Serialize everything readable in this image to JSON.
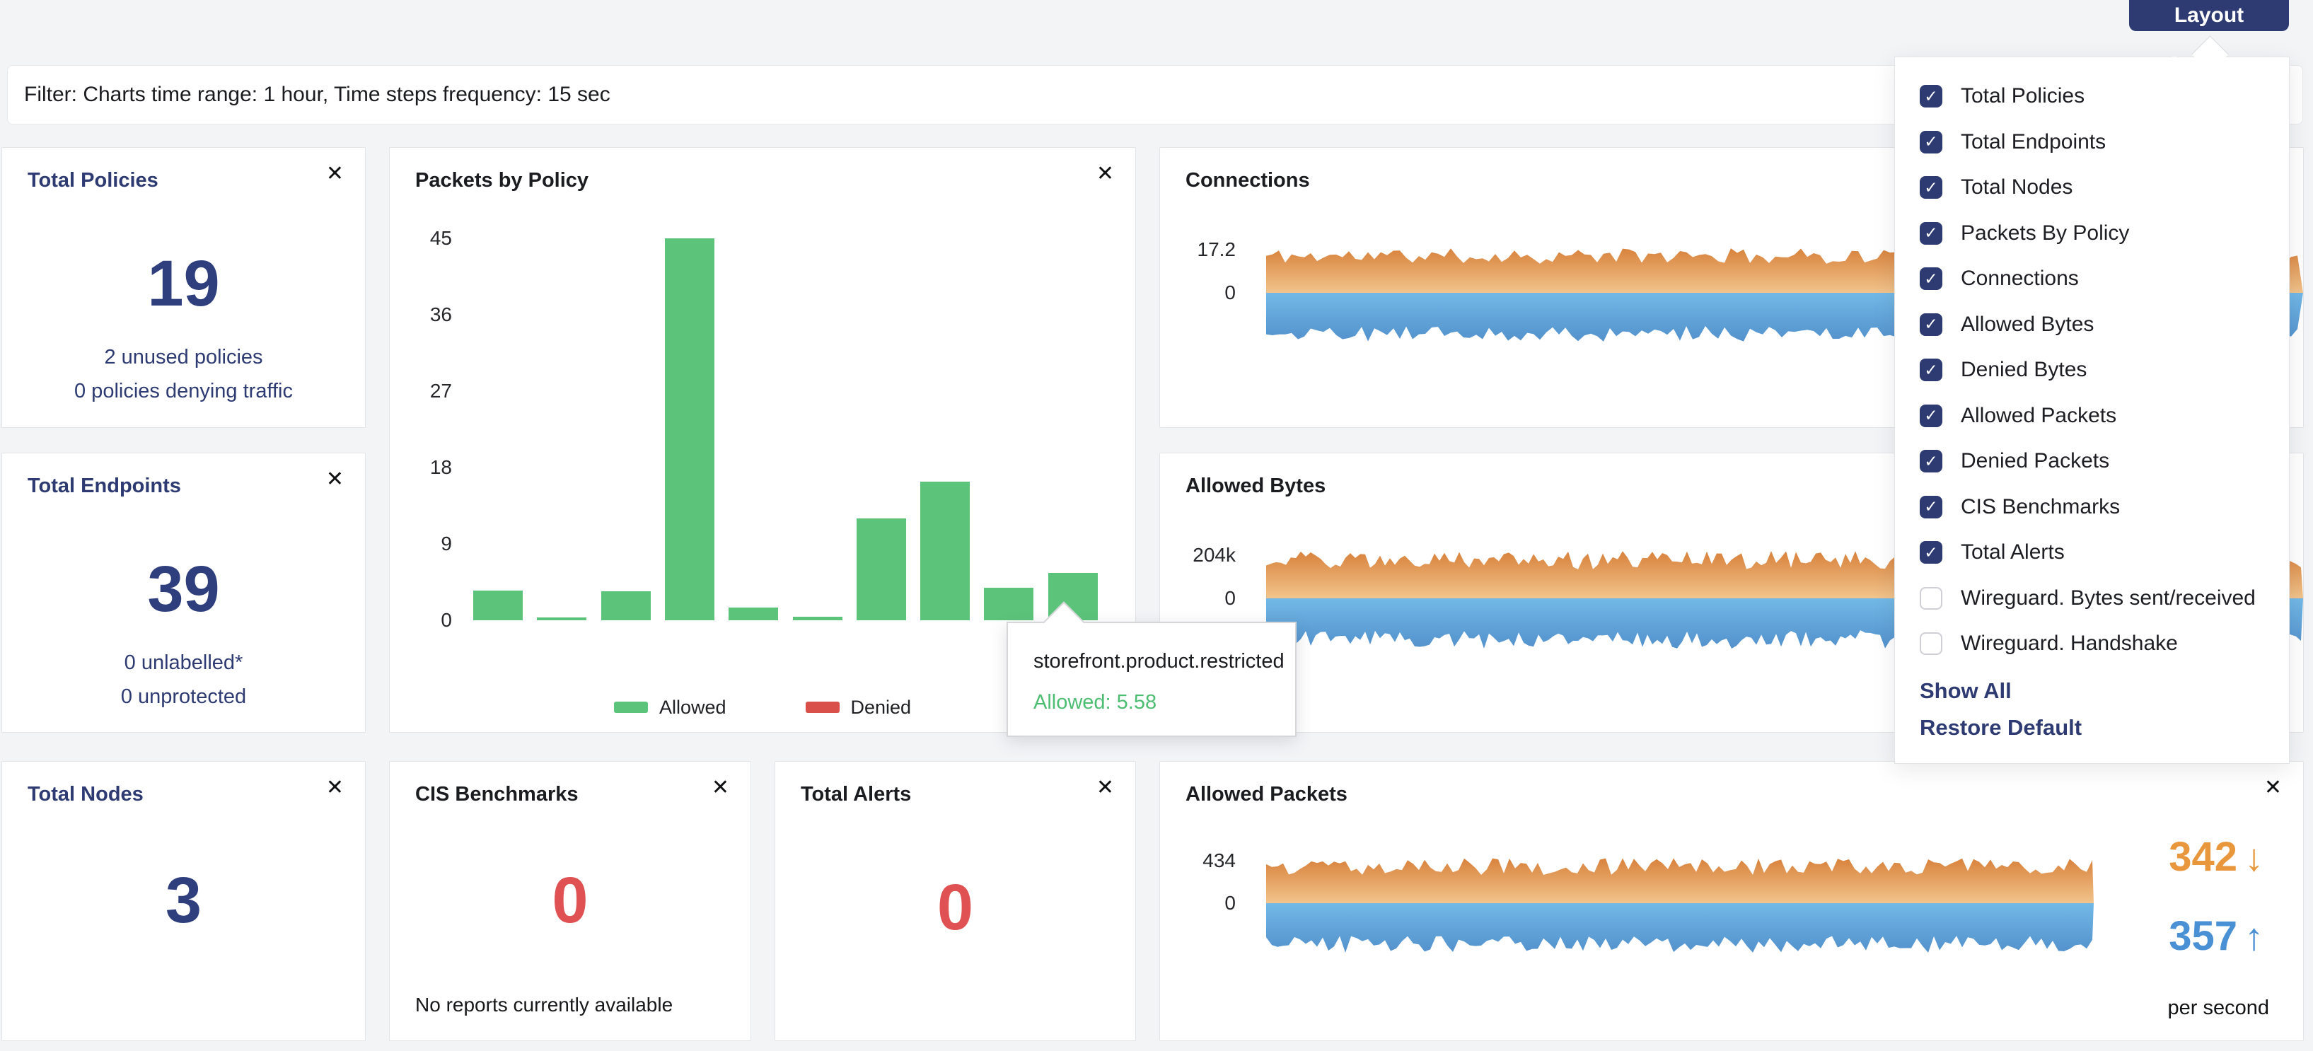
{
  "colors": {
    "navy": "#2e3b72",
    "navy_number": "#2f3f7d",
    "status_red": "#df5152",
    "allowed_green": "#5cc47a",
    "denied_red": "#d94f4a",
    "tooltip_green": "#4dbd72",
    "rate_orange": "#e8973c",
    "rate_blue": "#4a90d5",
    "area_orange_top": "#d8823c",
    "area_orange_bottom": "#f2c48c",
    "area_blue_top": "#72b9e7",
    "area_blue_bottom": "#5391cc",
    "page_background": "#f3f4f6"
  },
  "icons": {
    "close": "✕",
    "check": "✓",
    "arrow_down": "↓",
    "arrow_up": "↑"
  },
  "header": {
    "layout_settings_button": "Layout Settings"
  },
  "filter_bar": {
    "text": "Filter: Charts time range: 1 hour, Time steps frequency: 15 sec"
  },
  "layout_settings_menu": {
    "items": [
      {
        "label": "Total Policies",
        "checked": true
      },
      {
        "label": "Total Endpoints",
        "checked": true
      },
      {
        "label": "Total Nodes",
        "checked": true
      },
      {
        "label": "Packets By Policy",
        "checked": true
      },
      {
        "label": "Connections",
        "checked": true
      },
      {
        "label": "Allowed Bytes",
        "checked": true
      },
      {
        "label": "Denied Bytes",
        "checked": true
      },
      {
        "label": "Allowed Packets",
        "checked": true
      },
      {
        "label": "Denied Packets",
        "checked": true
      },
      {
        "label": "CIS Benchmarks",
        "checked": true
      },
      {
        "label": "Total Alerts",
        "checked": true
      },
      {
        "label": "Wireguard. Bytes sent/received",
        "checked": false
      },
      {
        "label": "Wireguard. Handshake",
        "checked": false
      }
    ],
    "show_all": "Show All",
    "restore_default": "Restore Default"
  },
  "cards": {
    "total_policies": {
      "title": "Total Policies",
      "value": "19",
      "lines": [
        "2 unused policies",
        "0 policies denying traffic"
      ]
    },
    "total_endpoints": {
      "title": "Total Endpoints",
      "value": "39",
      "lines": [
        "0 unlabelled*",
        "0 unprotected"
      ]
    },
    "total_nodes": {
      "title": "Total Nodes",
      "value": "3"
    },
    "cis_benchmarks": {
      "title": "CIS Benchmarks",
      "value": "0",
      "note": "No reports currently available"
    },
    "total_alerts": {
      "title": "Total Alerts",
      "value": "0"
    }
  },
  "chart_data": [
    {
      "id": "packets_by_policy",
      "type": "bar",
      "title": "Packets by Policy",
      "series": [
        {
          "name": "Allowed",
          "color": "#5cc47a",
          "values": [
            3.5,
            0.3,
            3.4,
            45,
            1.5,
            0.4,
            12,
            16.3,
            3.8,
            5.58
          ]
        },
        {
          "name": "Denied",
          "color": "#d94f4a",
          "values": [
            0,
            0,
            0,
            0,
            0,
            0,
            0,
            0,
            0,
            0
          ]
        }
      ],
      "ylim": [
        0,
        45
      ],
      "yticks": [
        0,
        9,
        18,
        27,
        36,
        45
      ],
      "grid": false,
      "legend_position": "bottom",
      "tooltip": {
        "label": "storefront.product.restricted",
        "series": "Allowed",
        "value": 5.58,
        "text": "Allowed: 5.58"
      }
    },
    {
      "id": "connections",
      "type": "area",
      "style": "mirrored_stream",
      "title": "Connections",
      "y_top_label": "17.2",
      "y_zero_label": "0",
      "series": [
        {
          "name": "up",
          "color": "orange-gradient"
        },
        {
          "name": "down",
          "color": "blue-gradient"
        }
      ]
    },
    {
      "id": "allowed_bytes",
      "type": "area",
      "style": "mirrored_stream",
      "title": "Allowed Bytes",
      "y_top_label": "204k",
      "y_zero_label": "0",
      "series": [
        {
          "name": "up",
          "color": "orange-gradient"
        },
        {
          "name": "down",
          "color": "blue-gradient"
        }
      ]
    },
    {
      "id": "allowed_packets",
      "type": "area",
      "style": "mirrored_stream",
      "title": "Allowed Packets",
      "y_top_label": "434",
      "y_zero_label": "0",
      "rate_down": "342",
      "rate_up": "357",
      "unit": "per second",
      "series": [
        {
          "name": "down-rate",
          "color": "orange-gradient"
        },
        {
          "name": "up-rate",
          "color": "blue-gradient"
        }
      ]
    }
  ]
}
